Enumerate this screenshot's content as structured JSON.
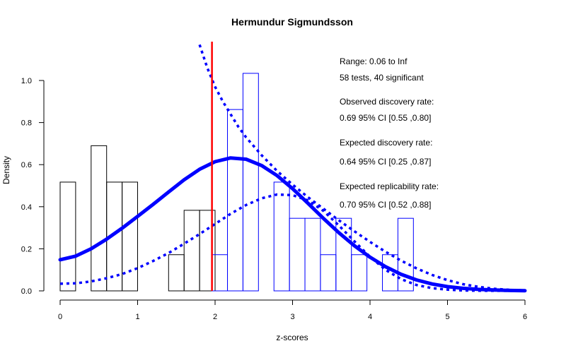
{
  "chart_data": {
    "type": "histogram",
    "title": "Hermundur Sigmundsson",
    "xlabel": "z-scores",
    "ylabel": "Density",
    "xlim": [
      0,
      6
    ],
    "ylim": [
      0,
      1.1
    ],
    "x_ticks": [
      "0",
      "1",
      "2",
      "3",
      "4",
      "5",
      "6"
    ],
    "y_ticks": [
      "0.0",
      "0.2",
      "0.4",
      "0.6",
      "0.8",
      "1.0"
    ],
    "grid": false,
    "bin_width": 0.2,
    "bins_nonsignificant": [
      {
        "x0": 0.0,
        "density": 0.517
      },
      {
        "x0": 0.2,
        "density": 0.0
      },
      {
        "x0": 0.4,
        "density": 0.69
      },
      {
        "x0": 0.6,
        "density": 0.517
      },
      {
        "x0": 0.8,
        "density": 0.517
      },
      {
        "x0": 1.0,
        "density": 0.0
      },
      {
        "x0": 1.2,
        "density": 0.0
      },
      {
        "x0": 1.4,
        "density": 0.172
      },
      {
        "x0": 1.6,
        "density": 0.383
      },
      {
        "x0": 1.8,
        "density": 0.383
      }
    ],
    "bins_significant": [
      {
        "x0": 1.96,
        "density": 0.172
      },
      {
        "x0": 2.16,
        "density": 0.862
      },
      {
        "x0": 2.36,
        "density": 1.034
      },
      {
        "x0": 2.56,
        "density": 0.0
      },
      {
        "x0": 2.76,
        "density": 0.517
      },
      {
        "x0": 2.96,
        "density": 0.345
      },
      {
        "x0": 3.16,
        "density": 0.345
      },
      {
        "x0": 3.36,
        "density": 0.172
      },
      {
        "x0": 3.56,
        "density": 0.345
      },
      {
        "x0": 3.76,
        "density": 0.172
      },
      {
        "x0": 3.96,
        "density": 0.0
      },
      {
        "x0": 4.16,
        "density": 0.172
      },
      {
        "x0": 4.36,
        "density": 0.345
      }
    ],
    "critical_z": 1.96,
    "curves": {
      "fitted": {
        "x": [
          0,
          0.2,
          0.4,
          0.6,
          0.8,
          1.0,
          1.2,
          1.4,
          1.6,
          1.8,
          2.0,
          2.2,
          2.4,
          2.6,
          2.8,
          3.0,
          3.2,
          3.4,
          3.6,
          3.8,
          4.0,
          4.2,
          4.4,
          4.6,
          4.8,
          5.0,
          5.2,
          5.4,
          5.6,
          5.8,
          6.0
        ],
        "y": [
          0.148,
          0.165,
          0.2,
          0.246,
          0.298,
          0.354,
          0.411,
          0.47,
          0.528,
          0.578,
          0.614,
          0.632,
          0.626,
          0.596,
          0.548,
          0.486,
          0.416,
          0.344,
          0.276,
          0.214,
          0.16,
          0.115,
          0.079,
          0.052,
          0.033,
          0.02,
          0.012,
          0.007,
          0.004,
          0.002,
          0.001
        ]
      },
      "lower_ci": {
        "x": [
          0,
          0.2,
          0.4,
          0.6,
          0.8,
          1.0,
          1.2,
          1.4,
          1.6,
          1.8,
          2.0,
          2.2,
          2.4,
          2.6,
          2.8,
          3.0,
          3.2,
          3.4,
          3.6,
          3.8,
          4.0,
          4.2,
          4.4,
          4.6,
          4.8,
          5.0,
          5.2,
          5.4,
          5.6,
          5.8,
          6.0
        ],
        "y": [
          0.034,
          0.036,
          0.045,
          0.06,
          0.08,
          0.108,
          0.142,
          0.18,
          0.224,
          0.27,
          0.318,
          0.366,
          0.408,
          0.44,
          0.458,
          0.455,
          0.43,
          0.38,
          0.31,
          0.235,
          0.162,
          0.1,
          0.056,
          0.028,
          0.013,
          0.006,
          0.002,
          0.001,
          0.0005,
          0.0002,
          0.0001
        ]
      },
      "upper_ci": {
        "x": [
          1.8,
          1.9,
          2.0,
          2.1,
          2.2,
          2.3,
          2.4,
          2.6,
          2.8,
          3.0,
          3.2,
          3.4,
          3.6,
          3.8,
          4.0,
          4.2,
          4.4,
          4.6,
          4.8,
          5.0,
          5.2,
          5.4,
          5.6,
          5.8,
          6.0
        ],
        "y": [
          1.17,
          1.06,
          0.97,
          0.9,
          0.84,
          0.78,
          0.73,
          0.645,
          0.57,
          0.505,
          0.445,
          0.39,
          0.335,
          0.283,
          0.233,
          0.186,
          0.144,
          0.107,
          0.076,
          0.051,
          0.032,
          0.019,
          0.01,
          0.005,
          0.002
        ]
      }
    },
    "annotations": [
      "Range: 0.06 to Inf",
      "58 tests, 40 significant",
      "Observed discovery rate:",
      "0.69  95% CI [0.55 ,0.80]",
      "Expected discovery rate:",
      "0.64  95% CI [0.25 ,0.87]",
      "Expected replicability rate:",
      "0.70  95% CI [0.52 ,0.88]"
    ],
    "colors": {
      "nonsignificant_bars": "#000000",
      "significant_bars": "#0000ff",
      "curves": "#0000ff",
      "critical_line": "#ff0000"
    }
  }
}
